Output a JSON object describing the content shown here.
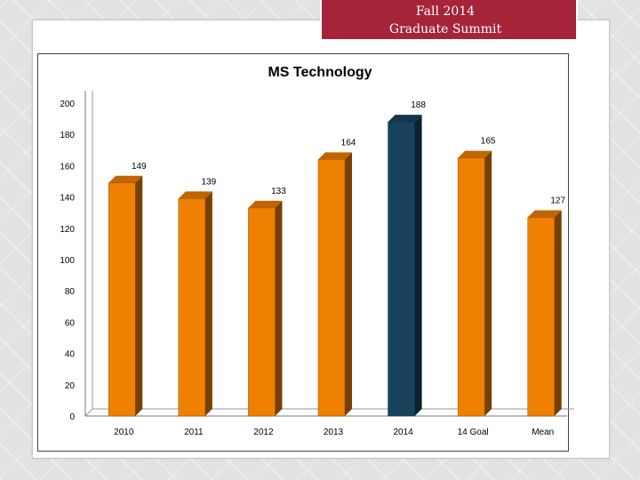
{
  "banner": {
    "line1": "Fall 2014",
    "line2": "Graduate Summit"
  },
  "colors": {
    "bar_default": "#f08000",
    "bar_highlight": "#16425c",
    "banner": "#a5243a"
  },
  "chart_data": {
    "type": "bar",
    "title": "MS Technology",
    "xlabel": "",
    "ylabel": "",
    "ylim": [
      0,
      200
    ],
    "yticks": [
      0,
      20,
      40,
      60,
      80,
      100,
      120,
      140,
      160,
      180,
      200
    ],
    "categories": [
      "2010",
      "2011",
      "2012",
      "2013",
      "2014",
      "14 Goal",
      "Mean"
    ],
    "values": [
      149,
      139,
      133,
      164,
      188,
      165,
      127
    ],
    "data_labels": [
      "149",
      "139",
      "133",
      "164",
      "188",
      "165",
      "127"
    ],
    "highlight_index": 4,
    "grid": false,
    "legend": "none"
  }
}
